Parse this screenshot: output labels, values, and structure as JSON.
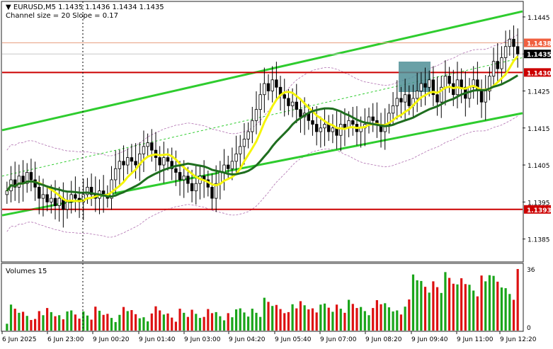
{
  "header": {
    "symbol_line": "EURUSD,M5  1.1435 1.1436 1.1434 1.1435",
    "indicator_line": "Channel size = 20 Slope = 0.17"
  },
  "volume_panel": {
    "label": "Volumes 15",
    "scale_top": "36",
    "scale_bottom": "0"
  },
  "colors": {
    "candle": "#000000",
    "channel": "#2ecc2e",
    "ma_fast": "#f5f50a",
    "ma_slow": "#1f6e1f",
    "level_line": "#cc0000",
    "bid_line": "#e8a080",
    "highlight_box": "#4f8f96",
    "volume_up": "#1aa51a",
    "volume_down": "#dd1111",
    "envelope": "#b070b0"
  },
  "chart_data": {
    "type": "candlestick",
    "ylim": [
      1.1379,
      1.1449
    ],
    "y_ticks": [
      "1.1445",
      "1.1435",
      "1.1425",
      "1.1415",
      "1.1405",
      "1.1395",
      "1.1385"
    ],
    "x_ticks": [
      "6 Jun 2025",
      "6 Jun 23:00",
      "9 Jun 00:20",
      "9 Jun 01:40",
      "9 Jun 03:00",
      "9 Jun 04:20",
      "9 Jun 05:40",
      "9 Jun 07:00",
      "9 Jun 08:20",
      "9 Jun 09:40",
      "9 Jun 11:00",
      "9 Jun 12:20"
    ],
    "price_labels": [
      {
        "text": "1.1438",
        "value": 1.1438,
        "color": "#f06040"
      },
      {
        "text": "1.1435",
        "value": 1.1435,
        "color": "#000000"
      },
      {
        "text": "1.1430",
        "value": 1.143,
        "color": "#cc0000"
      },
      {
        "text": "1.1393",
        "value": 1.1393,
        "color": "#cc0000"
      }
    ],
    "horizontal_levels": [
      1.143,
      1.1393
    ],
    "close": [
      1.1398,
      1.1401,
      1.1399,
      1.1402,
      1.14,
      1.1403,
      1.1401,
      1.1399,
      1.1396,
      1.1397,
      1.1395,
      1.1396,
      1.1394,
      1.1396,
      1.1393,
      1.1395,
      1.1397,
      1.1396,
      1.1395,
      1.1397,
      1.1399,
      1.1397,
      1.1396,
      1.1398,
      1.1397,
      1.1396,
      1.1401,
      1.1404,
      1.1406,
      1.1405,
      1.1407,
      1.1406,
      1.1405,
      1.1408,
      1.141,
      1.1411,
      1.1409,
      1.1407,
      1.1405,
      1.1407,
      1.1406,
      1.1404,
      1.1403,
      1.1401,
      1.1402,
      1.14,
      1.1398,
      1.14,
      1.1402,
      1.1401,
      1.1399,
      1.1396,
      1.14,
      1.1403,
      1.1405,
      1.1404,
      1.1406,
      1.1408,
      1.141,
      1.1412,
      1.1414,
      1.1417,
      1.142,
      1.1424,
      1.1427,
      1.1425,
      1.1428,
      1.1426,
      1.1424,
      1.1423,
      1.1421,
      1.1422,
      1.142,
      1.1418,
      1.1419,
      1.1417,
      1.1416,
      1.1414,
      1.1415,
      1.1416,
      1.1414,
      1.1415,
      1.1413,
      1.1416,
      1.1415,
      1.1417,
      1.1416,
      1.1414,
      1.1415,
      1.1416,
      1.1418,
      1.1417,
      1.1416,
      1.1414,
      1.1416,
      1.1419,
      1.1421,
      1.1423,
      1.1422,
      1.1424,
      1.1421,
      1.1423,
      1.1425,
      1.1427,
      1.1426,
      1.1428,
      1.1424,
      1.1422,
      1.1426,
      1.1429,
      1.1427,
      1.1424,
      1.1428,
      1.1426,
      1.1423,
      1.1426,
      1.1428,
      1.1425,
      1.1422,
      1.1425,
      1.1429,
      1.1433,
      1.1431,
      1.1434,
      1.1437,
      1.1439,
      1.1437,
      1.1435
    ]
  }
}
